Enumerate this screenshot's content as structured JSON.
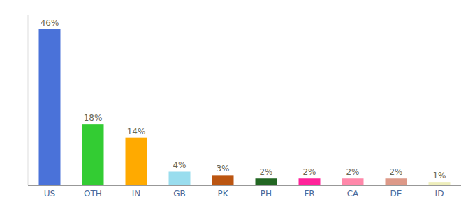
{
  "chart_data": {
    "type": "bar",
    "categories": [
      "US",
      "OTH",
      "IN",
      "GB",
      "PK",
      "PH",
      "FR",
      "CA",
      "DE",
      "ID"
    ],
    "values": [
      46,
      18,
      14,
      4,
      3,
      2,
      2,
      2,
      2,
      1
    ],
    "value_labels": [
      "46%",
      "18%",
      "14%",
      "4%",
      "3%",
      "2%",
      "2%",
      "2%",
      "2%",
      "1%"
    ],
    "colors": [
      "#4a72d9",
      "#33cc33",
      "#ffaa00",
      "#99ddee",
      "#bb5511",
      "#226622",
      "#ff2299",
      "#ff88aa",
      "#dd9988",
      "#eeeebb"
    ],
    "ylim": [
      0,
      50
    ],
    "data_labels": true,
    "tick_labels": "x",
    "grid": false
  }
}
